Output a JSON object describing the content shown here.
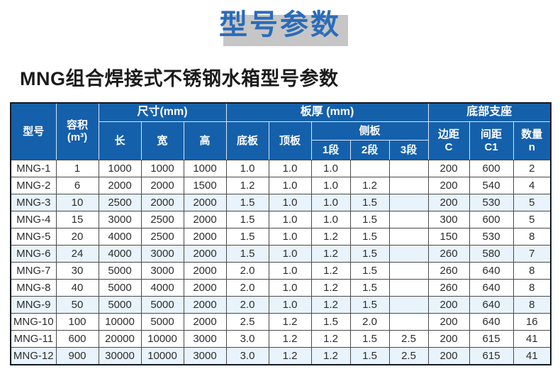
{
  "page": {
    "title": "型号参数",
    "subtitle": "MNG组合焊接式不锈钢水箱型号参数"
  },
  "colors": {
    "title_blue": "#2b6cb8",
    "title_shadow_gray": "#c6c6c6",
    "header_bg_blue": "#1560ab",
    "header_text": "#ffffff",
    "row_tint_blue": "#e8f3fb",
    "grid_border": "#4a4a4a",
    "outer_border": "#131922"
  },
  "table": {
    "header": {
      "model": "型号",
      "capacity_line1": "容积",
      "capacity_line2": "(m³)",
      "size_group": "尺寸(mm)",
      "length": "长",
      "width": "宽",
      "height": "高",
      "thickness_group": "板厚 (mm)",
      "bottom_plate": "底板",
      "top_plate": "顶板",
      "side_plate": "侧板",
      "seg1": "1段",
      "seg2": "2段",
      "seg3": "3段",
      "support_group": "底部支座",
      "edge_line1": "边距",
      "edge_line2": "C",
      "spacing_line1": "间距",
      "spacing_line2": "C1",
      "qty_line1": "数量",
      "qty_line2": "n"
    },
    "rows": [
      [
        "MNG-1",
        "1",
        "1000",
        "1000",
        "1000",
        "1.0",
        "1.0",
        "1.0",
        "",
        "",
        "200",
        "600",
        "2"
      ],
      [
        "MNG-2",
        "6",
        "2000",
        "2000",
        "1500",
        "1.2",
        "1.0",
        "1.0",
        "1.2",
        "",
        "200",
        "540",
        "4"
      ],
      [
        "MNG-3",
        "10",
        "2500",
        "2000",
        "2000",
        "1.5",
        "1.0",
        "1.0",
        "1.5",
        "",
        "200",
        "530",
        "5"
      ],
      [
        "MNG-4",
        "15",
        "3000",
        "2500",
        "2000",
        "1.5",
        "1.0",
        "1.0",
        "1.5",
        "",
        "300",
        "600",
        "5"
      ],
      [
        "MNG-5",
        "20",
        "4000",
        "2500",
        "2000",
        "1.5",
        "1.0",
        "1.2",
        "1.5",
        "",
        "150",
        "530",
        "8"
      ],
      [
        "MNG-6",
        "24",
        "4000",
        "3000",
        "2000",
        "1.5",
        "1.0",
        "1.2",
        "1.5",
        "",
        "260",
        "580",
        "7"
      ],
      [
        "MNG-7",
        "30",
        "5000",
        "3000",
        "2000",
        "2.0",
        "1.0",
        "1.2",
        "1.5",
        "",
        "260",
        "640",
        "8"
      ],
      [
        "MNG-8",
        "40",
        "5000",
        "4000",
        "2000",
        "2.0",
        "1.0",
        "1.2",
        "1.5",
        "",
        "260",
        "640",
        "8"
      ],
      [
        "MNG-9",
        "50",
        "5000",
        "5000",
        "2000",
        "2.0",
        "1.0",
        "1.2",
        "1.5",
        "",
        "200",
        "640",
        "8"
      ],
      [
        "MNG-10",
        "100",
        "10000",
        "5000",
        "2000",
        "2.5",
        "1.2",
        "1.5",
        "2.0",
        "",
        "200",
        "640",
        "16"
      ],
      [
        "MNG-11",
        "600",
        "20000",
        "10000",
        "3000",
        "3.0",
        "1.2",
        "1.2",
        "1.5",
        "2.5",
        "200",
        "615",
        "41"
      ],
      [
        "MNG-12",
        "900",
        "30000",
        "10000",
        "3000",
        "3.0",
        "1.2",
        "1.2",
        "1.5",
        "2.5",
        "200",
        "615",
        "41"
      ]
    ],
    "tinted_row_models": [
      "MNG-3",
      "MNG-6",
      "MNG-9",
      "MNG-12"
    ]
  }
}
